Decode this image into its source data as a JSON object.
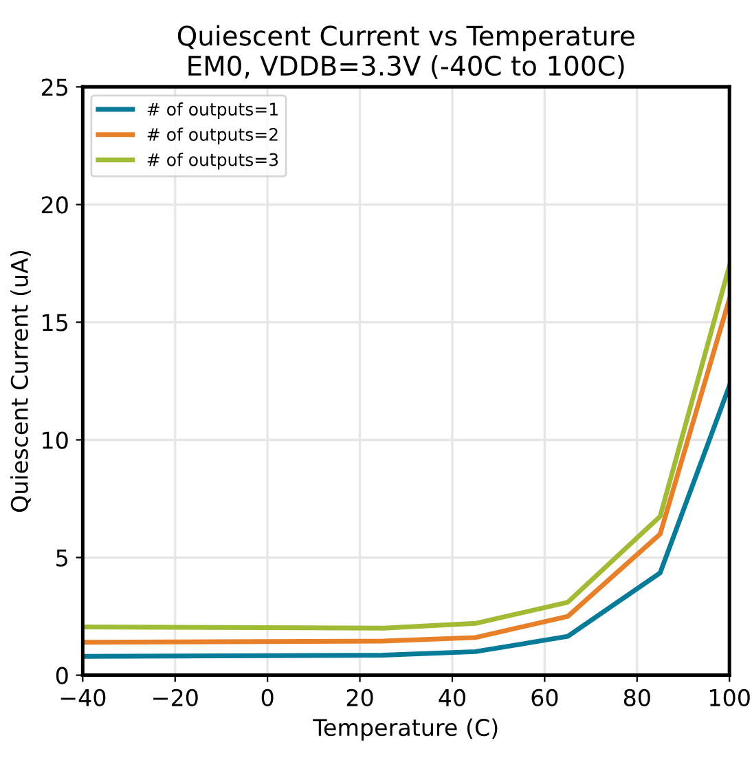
{
  "chart_data": {
    "type": "line",
    "title": "Quiescent Current vs Temperature\nEM0, VDDB=3.3V (-40C to 100C)",
    "xlabel": "Temperature (C)",
    "ylabel": "Quiescent Current (uA)",
    "x": [
      -40,
      25,
      45,
      65,
      85,
      100
    ],
    "series": [
      {
        "name": "# of outputs=1",
        "color": "#087b98",
        "values": [
          0.8,
          0.85,
          1.0,
          1.65,
          4.35,
          12.3
        ]
      },
      {
        "name": "# of outputs=2",
        "color": "#e8802a",
        "values": [
          1.4,
          1.45,
          1.6,
          2.5,
          6.0,
          16.0
        ]
      },
      {
        "name": "# of outputs=3",
        "color": "#a2bb34",
        "values": [
          2.05,
          2.0,
          2.2,
          3.1,
          6.75,
          17.4
        ]
      }
    ],
    "xlim": [
      -40,
      100
    ],
    "xticks": [
      {
        "value": -40,
        "label": "−40"
      },
      {
        "value": -20,
        "label": "−20"
      },
      0,
      20,
      40,
      60,
      80,
      100
    ],
    "ylim": [
      0,
      25
    ],
    "yticks": [
      0,
      5,
      10,
      15,
      20,
      25
    ],
    "grid": true,
    "legend": "top left",
    "marker": "none",
    "line_style": "solid"
  }
}
